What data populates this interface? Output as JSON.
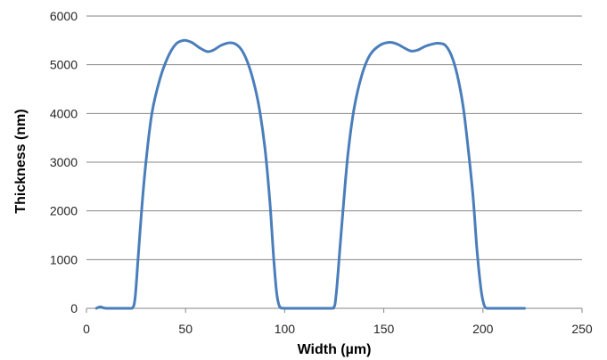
{
  "chart_data": {
    "type": "line",
    "title": "",
    "xlabel": "Width (µm)",
    "ylabel": "Thickness (nm)",
    "xlim": [
      0,
      250
    ],
    "ylim": [
      0,
      6000
    ],
    "x_ticks": [
      0,
      50,
      100,
      150,
      200,
      250
    ],
    "y_ticks": [
      0,
      1000,
      2000,
      3000,
      4000,
      5000,
      6000
    ],
    "x_tick_labels": [
      "0",
      "50",
      "100",
      "150",
      "200",
      "250"
    ],
    "y_tick_labels": [
      "0",
      "1000",
      "2000",
      "3000",
      "4000",
      "5000",
      "6000"
    ],
    "grid": "horizontal",
    "legend": "none",
    "series": [
      {
        "color": "#4a7ebb",
        "points": [
          [
            5,
            0
          ],
          [
            7,
            30
          ],
          [
            10,
            0
          ],
          [
            20,
            0
          ],
          [
            23,
            0
          ],
          [
            24.5,
            200
          ],
          [
            26,
            1000
          ],
          [
            28,
            2100
          ],
          [
            30,
            3000
          ],
          [
            33,
            4000
          ],
          [
            37,
            4700
          ],
          [
            41,
            5150
          ],
          [
            45,
            5420
          ],
          [
            49,
            5500
          ],
          [
            53,
            5460
          ],
          [
            57,
            5350
          ],
          [
            61,
            5270
          ],
          [
            64,
            5300
          ],
          [
            68,
            5400
          ],
          [
            72,
            5450
          ],
          [
            75,
            5430
          ],
          [
            78,
            5320
          ],
          [
            81,
            5080
          ],
          [
            84,
            4700
          ],
          [
            87,
            4150
          ],
          [
            90,
            3300
          ],
          [
            92.5,
            2200
          ],
          [
            94.5,
            1000
          ],
          [
            96,
            300
          ],
          [
            97.5,
            30
          ],
          [
            100,
            0
          ],
          [
            110,
            0
          ],
          [
            120,
            0
          ],
          [
            124.5,
            0
          ],
          [
            126,
            300
          ],
          [
            128,
            1300
          ],
          [
            130,
            2300
          ],
          [
            132,
            3200
          ],
          [
            135,
            4100
          ],
          [
            139,
            4800
          ],
          [
            143,
            5200
          ],
          [
            148,
            5400
          ],
          [
            153,
            5460
          ],
          [
            157,
            5420
          ],
          [
            161,
            5330
          ],
          [
            164,
            5280
          ],
          [
            167,
            5300
          ],
          [
            171,
            5380
          ],
          [
            175,
            5430
          ],
          [
            178,
            5440
          ],
          [
            181,
            5400
          ],
          [
            184,
            5200
          ],
          [
            187,
            4800
          ],
          [
            190,
            4150
          ],
          [
            192.5,
            3300
          ],
          [
            195,
            2300
          ],
          [
            197,
            1200
          ],
          [
            199,
            400
          ],
          [
            200.5,
            80
          ],
          [
            202,
            0
          ],
          [
            205,
            0
          ],
          [
            221,
            0
          ]
        ]
      }
    ]
  }
}
